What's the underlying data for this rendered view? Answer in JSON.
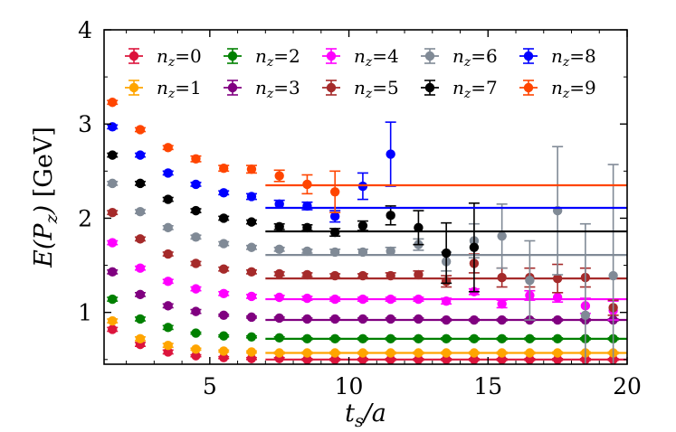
{
  "chart_data": {
    "type": "scatter",
    "title": "",
    "xlabel": "t_s/a",
    "ylabel": "E(P_z) [GeV]",
    "xlim": [
      1.2,
      20
    ],
    "ylim": [
      0.45,
      4
    ],
    "xticks": [
      5,
      10,
      15,
      20
    ],
    "yticks": [
      1,
      2,
      3,
      4
    ],
    "xtick_labels": [
      "5",
      "10",
      "15",
      "20"
    ],
    "ytick_labels": [
      "1",
      "2",
      "3",
      "4"
    ],
    "grid": false,
    "legend_position": "top",
    "series": [
      {
        "name": "n_z=0",
        "label_var": "n",
        "label_sub": "z",
        "label_val": "=0",
        "color": "#dc143c",
        "points": [
          [
            1.5,
            0.82,
            0.02
          ],
          [
            2.5,
            0.66,
            0.02
          ],
          [
            3.5,
            0.58,
            0.02
          ],
          [
            4.5,
            0.54,
            0.01
          ],
          [
            5.5,
            0.52,
            0.01
          ],
          [
            6.5,
            0.51,
            0.01
          ],
          [
            7.5,
            0.51,
            0.01
          ],
          [
            8.5,
            0.5,
            0.01
          ],
          [
            9.5,
            0.5,
            0.01
          ],
          [
            10.5,
            0.5,
            0.01
          ],
          [
            11.5,
            0.5,
            0.01
          ],
          [
            12.5,
            0.5,
            0.01
          ],
          [
            13.5,
            0.5,
            0.01
          ],
          [
            14.5,
            0.5,
            0.01
          ],
          [
            15.5,
            0.5,
            0.01
          ],
          [
            16.5,
            0.5,
            0.01
          ],
          [
            17.5,
            0.5,
            0.01
          ],
          [
            18.5,
            0.5,
            0.01
          ],
          [
            19.5,
            0.5,
            0.01
          ]
        ],
        "fit_value": 0.5
      },
      {
        "name": "n_z=1",
        "label_var": "n",
        "label_sub": "z",
        "label_val": "=1",
        "color": "#ffa500",
        "points": [
          [
            1.5,
            0.91,
            0.02
          ],
          [
            2.5,
            0.72,
            0.02
          ],
          [
            3.5,
            0.65,
            0.02
          ],
          [
            4.5,
            0.61,
            0.01
          ],
          [
            5.5,
            0.59,
            0.01
          ],
          [
            6.5,
            0.58,
            0.01
          ],
          [
            7.5,
            0.57,
            0.01
          ],
          [
            8.5,
            0.57,
            0.01
          ],
          [
            9.5,
            0.57,
            0.01
          ],
          [
            10.5,
            0.57,
            0.01
          ],
          [
            11.5,
            0.57,
            0.01
          ],
          [
            12.5,
            0.57,
            0.01
          ],
          [
            13.5,
            0.57,
            0.01
          ],
          [
            14.5,
            0.57,
            0.01
          ],
          [
            15.5,
            0.57,
            0.01
          ],
          [
            16.5,
            0.57,
            0.01
          ],
          [
            17.5,
            0.57,
            0.01
          ],
          [
            18.5,
            0.57,
            0.01
          ],
          [
            19.5,
            0.57,
            0.01
          ]
        ],
        "fit_value": 0.57
      },
      {
        "name": "n_z=2",
        "label_var": "n",
        "label_sub": "z",
        "label_val": "=2",
        "color": "#008000",
        "points": [
          [
            1.5,
            1.14,
            0.02
          ],
          [
            2.5,
            0.93,
            0.02
          ],
          [
            3.5,
            0.84,
            0.02
          ],
          [
            4.5,
            0.78,
            0.01
          ],
          [
            5.5,
            0.75,
            0.01
          ],
          [
            6.5,
            0.74,
            0.01
          ],
          [
            7.5,
            0.73,
            0.01
          ],
          [
            8.5,
            0.72,
            0.01
          ],
          [
            9.5,
            0.72,
            0.01
          ],
          [
            10.5,
            0.72,
            0.01
          ],
          [
            11.5,
            0.72,
            0.01
          ],
          [
            12.5,
            0.72,
            0.01
          ],
          [
            13.5,
            0.72,
            0.01
          ],
          [
            14.5,
            0.72,
            0.01
          ],
          [
            15.5,
            0.72,
            0.01
          ],
          [
            16.5,
            0.72,
            0.01
          ],
          [
            17.5,
            0.72,
            0.01
          ],
          [
            18.5,
            0.72,
            0.01
          ],
          [
            19.5,
            0.72,
            0.01
          ]
        ],
        "fit_value": 0.72
      },
      {
        "name": "n_z=3",
        "label_var": "n",
        "label_sub": "z",
        "label_val": "=3",
        "color": "#800080",
        "points": [
          [
            1.5,
            1.43,
            0.02
          ],
          [
            2.5,
            1.19,
            0.02
          ],
          [
            3.5,
            1.07,
            0.02
          ],
          [
            4.5,
            1.01,
            0.02
          ],
          [
            5.5,
            0.97,
            0.01
          ],
          [
            6.5,
            0.95,
            0.01
          ],
          [
            7.5,
            0.94,
            0.01
          ],
          [
            8.5,
            0.93,
            0.01
          ],
          [
            9.5,
            0.93,
            0.01
          ],
          [
            10.5,
            0.93,
            0.01
          ],
          [
            11.5,
            0.93,
            0.01
          ],
          [
            12.5,
            0.93,
            0.01
          ],
          [
            13.5,
            0.92,
            0.01
          ],
          [
            14.5,
            0.92,
            0.01
          ],
          [
            15.5,
            0.92,
            0.01
          ],
          [
            16.5,
            0.92,
            0.01
          ],
          [
            17.5,
            0.92,
            0.01
          ],
          [
            18.5,
            0.92,
            0.01
          ],
          [
            19.5,
            0.92,
            0.01
          ]
        ],
        "fit_value": 0.92
      },
      {
        "name": "n_z=4",
        "label_var": "n",
        "label_sub": "z",
        "label_val": "=4",
        "color": "#ff00ff",
        "points": [
          [
            1.5,
            1.74,
            0.02
          ],
          [
            2.5,
            1.47,
            0.02
          ],
          [
            3.5,
            1.33,
            0.02
          ],
          [
            4.5,
            1.25,
            0.02
          ],
          [
            5.5,
            1.2,
            0.02
          ],
          [
            6.5,
            1.17,
            0.02
          ],
          [
            7.5,
            1.16,
            0.02
          ],
          [
            8.5,
            1.15,
            0.02
          ],
          [
            9.5,
            1.14,
            0.02
          ],
          [
            10.5,
            1.14,
            0.02
          ],
          [
            11.5,
            1.14,
            0.02
          ],
          [
            12.5,
            1.14,
            0.02
          ],
          [
            13.5,
            1.12,
            0.03
          ],
          [
            14.5,
            1.22,
            0.03
          ],
          [
            15.5,
            1.09,
            0.04
          ],
          [
            16.5,
            1.18,
            0.05
          ],
          [
            17.5,
            1.16,
            0.05
          ],
          [
            18.5,
            1.07,
            0.08
          ],
          [
            19.5,
            1.02,
            0.1
          ]
        ],
        "fit_value": 1.14
      },
      {
        "name": "n_z=5",
        "label_var": "n",
        "label_sub": "z",
        "label_val": "=5",
        "color": "#a52a2a",
        "points": [
          [
            1.5,
            2.06,
            0.02
          ],
          [
            2.5,
            1.78,
            0.02
          ],
          [
            3.5,
            1.62,
            0.02
          ],
          [
            4.5,
            1.52,
            0.02
          ],
          [
            5.5,
            1.46,
            0.02
          ],
          [
            6.5,
            1.43,
            0.02
          ],
          [
            7.5,
            1.41,
            0.02
          ],
          [
            8.5,
            1.4,
            0.02
          ],
          [
            9.5,
            1.39,
            0.02
          ],
          [
            10.5,
            1.39,
            0.02
          ],
          [
            11.5,
            1.39,
            0.03
          ],
          [
            12.5,
            1.4,
            0.04
          ],
          [
            13.5,
            1.33,
            0.06
          ],
          [
            14.5,
            1.52,
            0.1
          ],
          [
            15.5,
            1.37,
            0.1
          ],
          [
            16.5,
            1.37,
            0.1
          ],
          [
            17.5,
            1.36,
            0.15
          ],
          [
            18.5,
            1.37,
            0.1
          ],
          [
            19.5,
            1.05,
            0.08
          ]
        ],
        "fit_value": 1.36
      },
      {
        "name": "n_z=6",
        "label_var": "n",
        "label_sub": "z",
        "label_val": "=6",
        "color": "#808a96",
        "points": [
          [
            1.5,
            2.37,
            0.02
          ],
          [
            2.5,
            2.07,
            0.02
          ],
          [
            3.5,
            1.9,
            0.02
          ],
          [
            4.5,
            1.8,
            0.02
          ],
          [
            5.5,
            1.73,
            0.02
          ],
          [
            6.5,
            1.69,
            0.02
          ],
          [
            7.5,
            1.67,
            0.02
          ],
          [
            8.5,
            1.65,
            0.02
          ],
          [
            9.5,
            1.64,
            0.03
          ],
          [
            10.5,
            1.64,
            0.03
          ],
          [
            11.5,
            1.65,
            0.04
          ],
          [
            12.5,
            1.72,
            0.06
          ],
          [
            13.5,
            1.54,
            0.1
          ],
          [
            14.5,
            1.76,
            0.18
          ],
          [
            15.5,
            1.81,
            0.34
          ],
          [
            16.5,
            1.34,
            0.42
          ],
          [
            17.5,
            2.08,
            0.68
          ],
          [
            18.5,
            0.97,
            0.97
          ],
          [
            19.5,
            1.39,
            1.18
          ]
        ],
        "fit_value": 1.61
      },
      {
        "name": "n_z=7",
        "label_var": "n",
        "label_sub": "z",
        "label_val": "=7",
        "color": "#000000",
        "points": [
          [
            1.5,
            2.67,
            0.02
          ],
          [
            2.5,
            2.37,
            0.02
          ],
          [
            3.5,
            2.2,
            0.02
          ],
          [
            4.5,
            2.08,
            0.02
          ],
          [
            5.5,
            2.0,
            0.02
          ],
          [
            6.5,
            1.96,
            0.02
          ],
          [
            7.5,
            1.91,
            0.03
          ],
          [
            8.5,
            1.9,
            0.03
          ],
          [
            9.5,
            1.85,
            0.04
          ],
          [
            10.5,
            1.92,
            0.05
          ],
          [
            11.5,
            2.03,
            0.1
          ],
          [
            12.5,
            1.9,
            0.18
          ],
          [
            13.5,
            1.63,
            0.32
          ],
          [
            14.5,
            1.69,
            0.47
          ]
        ],
        "fit_value": 1.86
      },
      {
        "name": "n_z=8",
        "label_var": "n",
        "label_sub": "z",
        "label_val": "=8",
        "color": "#0000ff",
        "points": [
          [
            1.5,
            2.97,
            0.02
          ],
          [
            2.5,
            2.67,
            0.02
          ],
          [
            3.5,
            2.48,
            0.02
          ],
          [
            4.5,
            2.36,
            0.02
          ],
          [
            5.5,
            2.27,
            0.02
          ],
          [
            6.5,
            2.23,
            0.03
          ],
          [
            7.5,
            2.15,
            0.04
          ],
          [
            8.5,
            2.13,
            0.04
          ],
          [
            9.5,
            2.02,
            0.06
          ],
          [
            10.5,
            2.34,
            0.14
          ],
          [
            11.5,
            2.68,
            0.34
          ]
        ],
        "fit_value": 2.11
      },
      {
        "name": "n_z=9",
        "label_var": "n",
        "label_sub": "z",
        "label_val": "=9",
        "color": "#ff4500",
        "points": [
          [
            1.5,
            3.23,
            0.02
          ],
          [
            2.5,
            2.94,
            0.02
          ],
          [
            3.5,
            2.75,
            0.02
          ],
          [
            4.5,
            2.63,
            0.03
          ],
          [
            5.5,
            2.53,
            0.03
          ],
          [
            6.5,
            2.52,
            0.04
          ],
          [
            7.5,
            2.45,
            0.06
          ],
          [
            8.5,
            2.36,
            0.1
          ],
          [
            9.5,
            2.28,
            0.22
          ]
        ],
        "fit_value": 2.35
      }
    ],
    "fit_range": [
      7,
      20
    ]
  }
}
